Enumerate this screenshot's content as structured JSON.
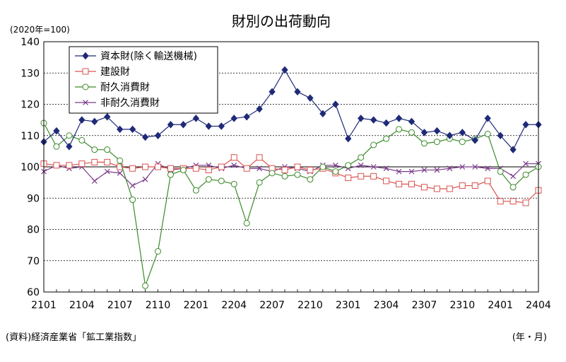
{
  "chart_data": {
    "type": "line",
    "title": "財別の出荷動向",
    "unit_label": "(2020年=100)",
    "source_note": "(資料)経済産業省「鉱工業指数」",
    "xaxis_unit": "(年・月)",
    "ylim": [
      60,
      140
    ],
    "yticks": [
      60,
      70,
      80,
      90,
      100,
      110,
      120,
      130,
      140
    ],
    "grid": true,
    "legend_position": "top-left",
    "x": [
      "2101",
      "2102",
      "2103",
      "2104",
      "2105",
      "2106",
      "2107",
      "2108",
      "2109",
      "2110",
      "2111",
      "2112",
      "2201",
      "2202",
      "2203",
      "2204",
      "2205",
      "2206",
      "2207",
      "2208",
      "2209",
      "2210",
      "2211",
      "2212",
      "2301",
      "2302",
      "2303",
      "2304",
      "2305",
      "2306",
      "2307",
      "2308",
      "2309",
      "2310",
      "2311",
      "2312",
      "2401",
      "2402",
      "2403",
      "2404"
    ],
    "xtick_labels": [
      "2101",
      "2104",
      "2107",
      "2110",
      "2201",
      "2204",
      "2207",
      "2210",
      "2301",
      "2304",
      "2307",
      "2310",
      "2401",
      "2404"
    ],
    "series": [
      {
        "name": "資本財(除く輸送機械)",
        "color": "#1f2a78",
        "marker": "diamond",
        "values": [
          108,
          111.5,
          106.5,
          115,
          114.5,
          116,
          112,
          112,
          109.5,
          110,
          113.5,
          113.5,
          115.5,
          113,
          113,
          115.5,
          116,
          118.5,
          124,
          131,
          124,
          122,
          117,
          120,
          109,
          115.5,
          115,
          114,
          115.5,
          114.5,
          111,
          111.5,
          110,
          111,
          108.5,
          115.5,
          110,
          105.5,
          113.5,
          113.5
        ]
      },
      {
        "name": "建設財",
        "color": "#d9534f",
        "marker": "square",
        "values": [
          101,
          100.5,
          100.5,
          101,
          101.5,
          101.5,
          100,
          99.5,
          100,
          100,
          99.5,
          99.5,
          99.5,
          99,
          100,
          103,
          99.5,
          103,
          99.5,
          99,
          100,
          99,
          99.5,
          98,
          96.5,
          97,
          97,
          95.5,
          94.5,
          94.5,
          93.5,
          93,
          93,
          94,
          94,
          95.5,
          89,
          89,
          88.5,
          92.5
        ]
      },
      {
        "name": "耐久消費財",
        "color": "#3a8a2a",
        "marker": "circle",
        "values": [
          114,
          106.5,
          110,
          108.5,
          105.5,
          105.5,
          102,
          89.5,
          62,
          73,
          97.5,
          99,
          92.5,
          96,
          95.5,
          94.5,
          82,
          95,
          98,
          97,
          97.5,
          96,
          100,
          98.5,
          100.5,
          103,
          107,
          109,
          112,
          111,
          107.5,
          108,
          109,
          108,
          109,
          110.5,
          98.5,
          93.5,
          97.5,
          100
        ]
      },
      {
        "name": "非耐久消費財",
        "color": "#7a3a8a",
        "marker": "cross",
        "values": [
          98.5,
          100.5,
          99.5,
          100,
          95.5,
          98.5,
          98,
          94,
          96,
          101,
          99,
          99.5,
          100.5,
          100.5,
          99.5,
          100.5,
          99.5,
          99.5,
          98.5,
          100,
          99.5,
          98.5,
          100.5,
          100.5,
          99.5,
          100.5,
          100,
          99.5,
          98.5,
          98.5,
          99,
          99,
          99.5,
          100,
          100,
          99.5,
          99.5,
          97,
          101,
          101
        ]
      }
    ]
  }
}
